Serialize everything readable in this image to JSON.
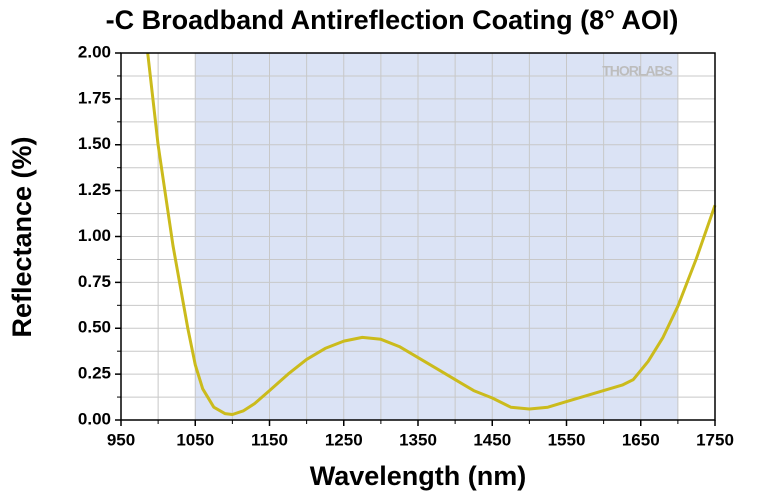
{
  "chart_data": {
    "type": "line",
    "title": "-C Broadband Antireflection Coating (8° AOI)",
    "xlabel": "Wavelength (nm)",
    "ylabel": "Reflectance (%)",
    "watermark": "THORLABS",
    "x": [
      986,
      1000,
      1020,
      1040,
      1050,
      1060,
      1075,
      1090,
      1100,
      1115,
      1130,
      1150,
      1175,
      1200,
      1225,
      1250,
      1275,
      1300,
      1325,
      1350,
      1375,
      1400,
      1425,
      1450,
      1475,
      1500,
      1525,
      1550,
      1575,
      1600,
      1625,
      1640,
      1660,
      1680,
      1700,
      1725,
      1750
    ],
    "series": [
      {
        "color": "#cbbb1c",
        "values": [
          2.0,
          1.5,
          0.95,
          0.5,
          0.3,
          0.17,
          0.07,
          0.035,
          0.03,
          0.05,
          0.09,
          0.16,
          0.25,
          0.33,
          0.39,
          0.43,
          0.45,
          0.44,
          0.4,
          0.34,
          0.28,
          0.22,
          0.16,
          0.12,
          0.07,
          0.06,
          0.07,
          0.1,
          0.13,
          0.16,
          0.19,
          0.22,
          0.32,
          0.45,
          0.62,
          0.88,
          1.17
        ]
      }
    ],
    "shaded_region": [
      1050,
      1700
    ],
    "shaded_color": "#dbe3f5",
    "xlim": [
      950,
      1750
    ],
    "xticks": [
      950,
      1050,
      1150,
      1250,
      1350,
      1450,
      1550,
      1650,
      1750
    ],
    "xminorticks": [
      1000,
      1100,
      1200,
      1300,
      1400,
      1500,
      1600,
      1700
    ],
    "ylim": [
      0,
      2
    ],
    "yticks": [
      {
        "value": 0,
        "label": "0.00"
      },
      {
        "value": 0.25,
        "label": "0.25"
      },
      {
        "value": 0.5,
        "label": "0.50"
      },
      {
        "value": 0.75,
        "label": "0.75"
      },
      {
        "value": 1,
        "label": "1.00"
      },
      {
        "value": 1.25,
        "label": "1.25"
      },
      {
        "value": 1.5,
        "label": "1.50"
      },
      {
        "value": 1.75,
        "label": "1.75"
      },
      {
        "value": 2,
        "label": "2.00"
      }
    ],
    "yminorticks": [
      0.125,
      0.375,
      0.625,
      0.875,
      1.125,
      1.375,
      1.625,
      1.875
    ],
    "grid": true
  }
}
